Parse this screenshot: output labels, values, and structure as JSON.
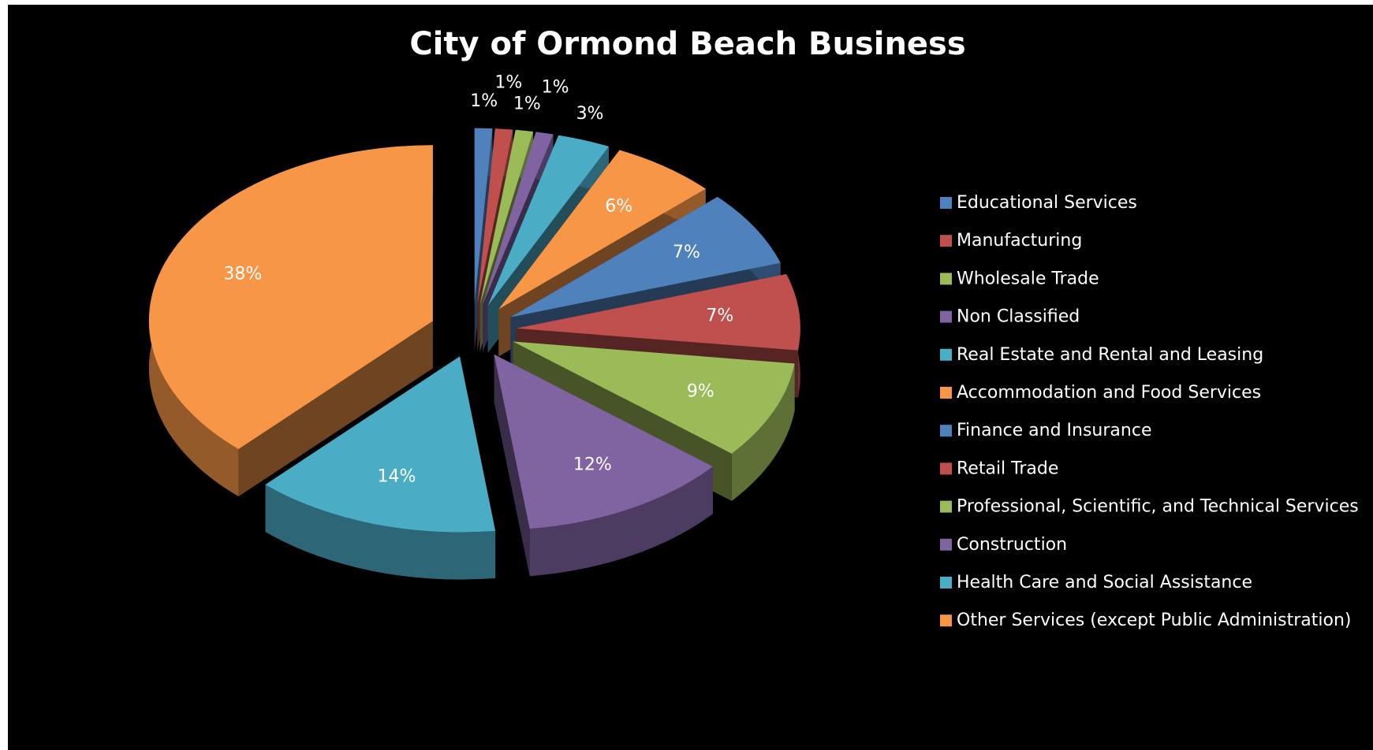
{
  "chart_data": {
    "type": "pie",
    "title": "City of Ormond Beach Business",
    "categories": [
      "Educational Services",
      "Manufacturing",
      "Wholesale Trade",
      "Non Classified",
      "Real Estate and Rental and Leasing",
      "Accommodation and Food Services",
      "Finance and Insurance",
      "Retail Trade",
      "Professional, Scientific, and Technical Services",
      "Construction",
      "Health Care and Social Assistance",
      "Other Services (except Public Administration)"
    ],
    "values": [
      1,
      1,
      1,
      1,
      3,
      6,
      7,
      7,
      9,
      12,
      14,
      38
    ],
    "value_labels": [
      "1%",
      "1%",
      "1%",
      "1%",
      "3%",
      "6%",
      "7%",
      "7%",
      "9%",
      "12%",
      "14%",
      "38%"
    ],
    "colors": [
      "#4f81bd",
      "#c0504d",
      "#9bbb59",
      "#8064a2",
      "#4bacc6",
      "#f79646",
      "#4f81bd",
      "#c0504d",
      "#9bbb59",
      "#8064a2",
      "#4bacc6",
      "#f79646"
    ],
    "legend": "right"
  }
}
